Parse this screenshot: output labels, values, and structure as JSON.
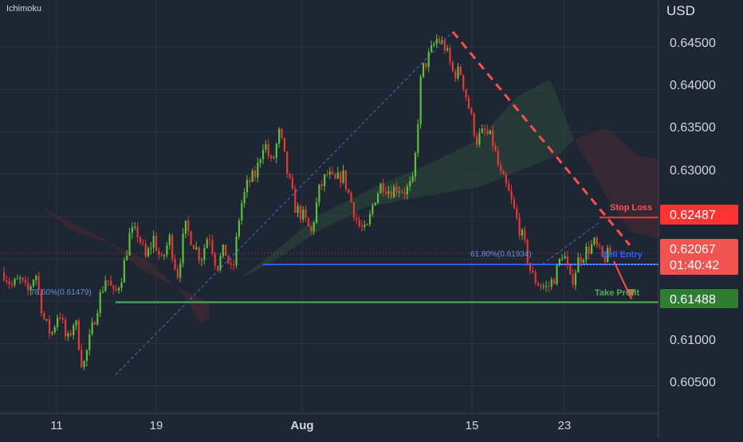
{
  "indicator_label": "Ichimoku",
  "colors": {
    "background": "#1e2633",
    "bull": "#5fbf3a",
    "bear": "#e53935",
    "grid": "#2a3342",
    "axis_text": "#d1d4dc",
    "stop": "#ff3333",
    "entry": "#2962ff",
    "target": "#4caf50",
    "target_bg": "#2e7d32",
    "cloud_bull": "#2b4b3a",
    "cloud_bear": "#4a2a32"
  },
  "chart_data": {
    "type": "candlestick",
    "currency": "USD",
    "ylim": [
      0.6003,
      0.6503
    ],
    "y_ticks": [
      "0.64500",
      "0.64000",
      "0.63500",
      "0.63000",
      "0.61000",
      "0.60500"
    ],
    "x_ticks": [
      "11",
      "19",
      "Aug",
      "15",
      "23"
    ],
    "price_labels": {
      "stop_loss": "0.62487",
      "current_price": "0.62067",
      "countdown": "01:40:42",
      "take_profit": "0.61488"
    },
    "annotations": {
      "stop_loss": "Stop Loss",
      "sell_entry": "Sell Entry",
      "take_profit": "Take Profit",
      "fib_618": "61.80%(0.61934)",
      "fib_786": "78.60%(0.61479)"
    },
    "levels": {
      "stop_loss": 0.62487,
      "sell_entry": 0.61934,
      "take_profit": 0.61488,
      "fib_786": 0.61479,
      "current_price": 0.62067
    },
    "swings": {
      "fib_low": 0.6063,
      "fib_high": 0.6468,
      "entry_pivot": 0.6243
    },
    "path": [
      0.6184,
      0.6168,
      0.6175,
      0.616,
      0.6185,
      0.613,
      0.611,
      0.614,
      0.61,
      0.613,
      0.607,
      0.611,
      0.615,
      0.618,
      0.6155,
      0.6182,
      0.623,
      0.623,
      0.62,
      0.6225,
      0.6195,
      0.6225,
      0.618,
      0.6238,
      0.622,
      0.62,
      0.6232,
      0.619,
      0.6212,
      0.618,
      0.626,
      0.629,
      0.63,
      0.634,
      0.631,
      0.635,
      0.63,
      0.626,
      0.625,
      0.623,
      0.628,
      0.63,
      0.629,
      0.63,
      0.627,
      0.624,
      0.623,
      0.627,
      0.629,
      0.628,
      0.6285,
      0.628,
      0.629,
      0.642,
      0.644,
      0.646,
      0.645,
      0.642,
      0.642,
      0.638,
      0.634,
      0.635,
      0.634,
      0.63,
      0.628,
      0.625,
      0.622,
      0.618,
      0.617,
      0.6165,
      0.618,
      0.621,
      0.617,
      0.62,
      0.621,
      0.6218,
      0.62,
      0.6206
    ]
  }
}
